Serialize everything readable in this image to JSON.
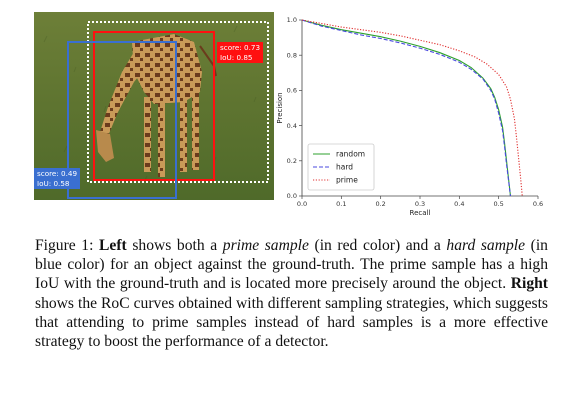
{
  "left_panel": {
    "prime": {
      "score": "score: 0.73",
      "iou": "IoU: 0.85",
      "color": "#ff1010"
    },
    "hard": {
      "score": "score: 0.49",
      "iou": "IoU: 0.58",
      "color": "#3a6fd0"
    },
    "ground_truth_color": "#ffffff"
  },
  "chart_data": {
    "type": "line",
    "xlabel": "Recall",
    "ylabel": "Precision",
    "xlim": [
      0.0,
      0.6
    ],
    "ylim": [
      0.0,
      1.0
    ],
    "xticks": [
      "0.0",
      "0.1",
      "0.2",
      "0.3",
      "0.4",
      "0.5",
      "0.6"
    ],
    "yticks": [
      "0.0",
      "0.2",
      "0.4",
      "0.6",
      "0.8",
      "1.0"
    ],
    "grid": false,
    "legend_position": "lower-left",
    "series": [
      {
        "name": "random",
        "style": "solid",
        "color": "#2ca02c",
        "x": [
          0.0,
          0.05,
          0.1,
          0.15,
          0.2,
          0.25,
          0.3,
          0.35,
          0.4,
          0.43,
          0.46,
          0.48,
          0.49,
          0.5,
          0.51,
          0.515,
          0.52,
          0.525,
          0.53
        ],
        "y": [
          1.0,
          0.97,
          0.945,
          0.925,
          0.905,
          0.88,
          0.85,
          0.815,
          0.77,
          0.73,
          0.67,
          0.61,
          0.56,
          0.49,
          0.39,
          0.3,
          0.2,
          0.1,
          0.0
        ]
      },
      {
        "name": "hard",
        "style": "dashed",
        "color": "#4a4adf",
        "x": [
          0.0,
          0.05,
          0.1,
          0.15,
          0.2,
          0.25,
          0.3,
          0.35,
          0.4,
          0.43,
          0.46,
          0.48,
          0.49,
          0.5,
          0.51,
          0.515,
          0.52,
          0.525,
          0.53
        ],
        "y": [
          1.0,
          0.965,
          0.94,
          0.915,
          0.895,
          0.87,
          0.84,
          0.805,
          0.76,
          0.72,
          0.665,
          0.6,
          0.55,
          0.47,
          0.37,
          0.28,
          0.18,
          0.09,
          0.0
        ]
      },
      {
        "name": "prime",
        "style": "dotted",
        "color": "#e03030",
        "x": [
          0.0,
          0.05,
          0.1,
          0.15,
          0.2,
          0.25,
          0.3,
          0.35,
          0.4,
          0.44,
          0.47,
          0.5,
          0.52,
          0.53,
          0.54,
          0.545,
          0.55,
          0.555,
          0.56
        ],
        "y": [
          1.0,
          0.98,
          0.96,
          0.945,
          0.93,
          0.91,
          0.885,
          0.86,
          0.825,
          0.79,
          0.75,
          0.69,
          0.62,
          0.55,
          0.44,
          0.34,
          0.23,
          0.12,
          0.0
        ]
      }
    ]
  },
  "caption": {
    "fig_label": "Figure 1: ",
    "left_bold": "Left",
    "t1": " shows both a ",
    "prime_italic": "prime sample",
    "t2": " (in red color) and a ",
    "hard_italic": "hard sample",
    "t3": " (in blue color) for an object against the ground-truth. The prime sample has a high IoU with the ground-truth and is located more precisely around the object. ",
    "right_bold": "Right",
    "t4": " shows the RoC curves obtained with different sampling strategies, which suggests that attending to prime samples instead of hard samples is a more effective strategy to boost the performance of a detector."
  }
}
